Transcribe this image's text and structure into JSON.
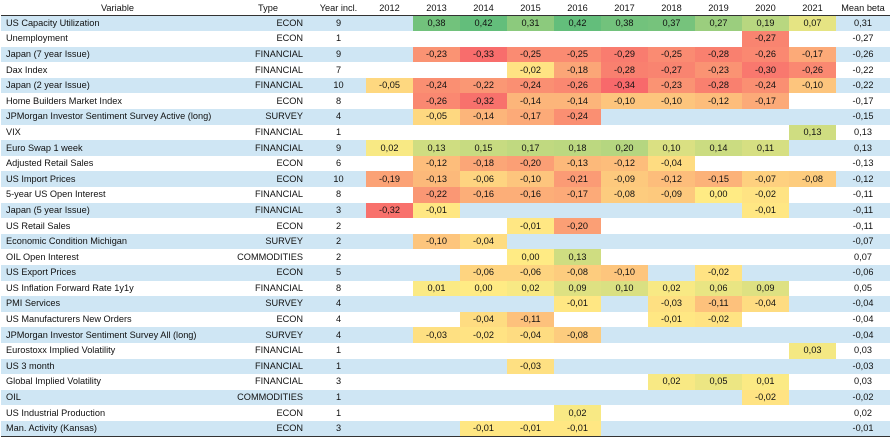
{
  "headers": {
    "variable": "Variable",
    "type": "Type",
    "year_incl": "Year incl.",
    "years": [
      "2012",
      "2013",
      "2014",
      "2015",
      "2016",
      "2017",
      "2018",
      "2019",
      "2020",
      "2021"
    ],
    "mean": "Mean beta"
  },
  "colors": {
    "positive": "#63be7b",
    "neutral": "#ffeb84",
    "negative": "#f8696b",
    "row_band": "#cfe6f4"
  },
  "rows": [
    {
      "variable": "US Capacity Utilization",
      "type": "ECON",
      "year_incl": "9",
      "values": [
        "",
        "0,38",
        "0,42",
        "0,31",
        "0,42",
        "0,38",
        "0,37",
        "0,27",
        "0,19",
        "0,07"
      ],
      "mean": "0,31"
    },
    {
      "variable": "Unemployment",
      "type": "ECON",
      "year_incl": "1",
      "values": [
        "",
        "",
        "",
        "",
        "",
        "",
        "",
        "",
        "-0,27",
        ""
      ],
      "mean": "-0,27"
    },
    {
      "variable": "Japan (7 year Issue)",
      "type": "FINANCIAL",
      "year_incl": "9",
      "values": [
        "",
        "-0,23",
        "-0,33",
        "-0,25",
        "-0,25",
        "-0,29",
        "-0,25",
        "-0,28",
        "-0,26",
        "-0,17"
      ],
      "mean": "-0,26"
    },
    {
      "variable": "Dax Index",
      "type": "FINANCIAL",
      "year_incl": "7",
      "values": [
        "",
        "",
        "",
        "-0,02",
        "-0,18",
        "-0,28",
        "-0,27",
        "-0,23",
        "-0,30",
        "-0,26"
      ],
      "mean": "-0,22"
    },
    {
      "variable": "Japan (2 year Issue)",
      "type": "FINANCIAL",
      "year_incl": "10",
      "values": [
        "-0,05",
        "-0,24",
        "-0,22",
        "-0,24",
        "-0,26",
        "-0,34",
        "-0,23",
        "-0,28",
        "-0,24",
        "-0,10"
      ],
      "mean": "-0,22"
    },
    {
      "variable": "Home Builders Market Index",
      "type": "ECON",
      "year_incl": "8",
      "values": [
        "",
        "-0,26",
        "-0,32",
        "-0,14",
        "-0,14",
        "-0,10",
        "-0,10",
        "-0,12",
        "-0,17",
        ""
      ],
      "mean": "-0,17"
    },
    {
      "variable": "JPMorgan Investor Sentiment Survey Active (long)",
      "type": "SURVEY",
      "year_incl": "4",
      "values": [
        "",
        "-0,05",
        "-0,14",
        "-0,17",
        "-0,24",
        "",
        "",
        "",
        "",
        ""
      ],
      "mean": "-0,15"
    },
    {
      "variable": "VIX",
      "type": "FINANCIAL",
      "year_incl": "1",
      "values": [
        "",
        "",
        "",
        "",
        "",
        "",
        "",
        "",
        "",
        "0,13"
      ],
      "mean": "0,13"
    },
    {
      "variable": "Euro Swap 1 week",
      "type": "FINANCIAL",
      "year_incl": "9",
      "values": [
        "0,02",
        "0,13",
        "0,15",
        "0,17",
        "0,18",
        "0,20",
        "0,10",
        "0,14",
        "0,11",
        ""
      ],
      "mean": "0,13"
    },
    {
      "variable": "Adjusted Retail Sales",
      "type": "ECON",
      "year_incl": "6",
      "values": [
        "",
        "-0,12",
        "-0,18",
        "-0,20",
        "-0,13",
        "-0,12",
        "-0,04",
        "",
        "",
        ""
      ],
      "mean": "-0,13"
    },
    {
      "variable": "US Import Prices",
      "type": "ECON",
      "year_incl": "10",
      "values": [
        "-0,19",
        "-0,13",
        "-0,06",
        "-0,10",
        "-0,21",
        "-0,09",
        "-0,12",
        "-0,15",
        "-0,07",
        "-0,08"
      ],
      "mean": "-0,12"
    },
    {
      "variable": "5-year US Open Interest",
      "type": "FINANCIAL",
      "year_incl": "8",
      "values": [
        "",
        "-0,22",
        "-0,16",
        "-0,16",
        "-0,17",
        "-0,08",
        "-0,09",
        "0,00",
        "-0,02",
        ""
      ],
      "mean": "-0,11"
    },
    {
      "variable": "Japan (5 year Issue)",
      "type": "FINANCIAL",
      "year_incl": "3",
      "values": [
        "-0,32",
        "-0,01",
        "",
        "",
        "",
        "",
        "",
        "",
        "-0,01",
        ""
      ],
      "mean": "-0,11"
    },
    {
      "variable": "US Retail Sales",
      "type": "ECON",
      "year_incl": "2",
      "values": [
        "",
        "",
        "",
        "-0,01",
        "-0,20",
        "",
        "",
        "",
        "",
        ""
      ],
      "mean": "-0,11"
    },
    {
      "variable": "Economic Condition Michigan",
      "type": "SURVEY",
      "year_incl": "2",
      "values": [
        "",
        "-0,10",
        "-0,04",
        "",
        "",
        "",
        "",
        "",
        "",
        ""
      ],
      "mean": "-0,07"
    },
    {
      "variable": "OIL Open Interest",
      "type": "COMMODITIES",
      "year_incl": "2",
      "values": [
        "",
        "",
        "",
        "0,00",
        "0,13",
        "",
        "",
        "",
        "",
        ""
      ],
      "mean": "0,07"
    },
    {
      "variable": "US Export Prices",
      "type": "ECON",
      "year_incl": "5",
      "values": [
        "",
        "",
        "-0,06",
        "-0,06",
        "-0,08",
        "-0,10",
        "",
        "-0,02",
        "",
        ""
      ],
      "mean": "-0,06"
    },
    {
      "variable": "US Inflation Forward Rate 1y1y",
      "type": "FINANCIAL",
      "year_incl": "8",
      "values": [
        "",
        "0,01",
        "0,00",
        "0,02",
        "0,09",
        "0,10",
        "0,02",
        "0,06",
        "0,09",
        ""
      ],
      "mean": "0,05"
    },
    {
      "variable": "PMI Services",
      "type": "SURVEY",
      "year_incl": "4",
      "values": [
        "",
        "",
        "",
        "",
        "-0,01",
        "",
        "-0,03",
        "-0,11",
        "-0,04",
        ""
      ],
      "mean": "-0,04"
    },
    {
      "variable": "US Manufacturers New Orders",
      "type": "ECON",
      "year_incl": "4",
      "values": [
        "",
        "",
        "-0,04",
        "-0,11",
        "",
        "",
        "-0,01",
        "-0,02",
        "",
        ""
      ],
      "mean": "-0,04"
    },
    {
      "variable": "JPMorgan Investor Sentiment Survey All (long)",
      "type": "SURVEY",
      "year_incl": "4",
      "values": [
        "",
        "-0,03",
        "-0,02",
        "-0,04",
        "-0,08",
        "",
        "",
        "",
        "",
        ""
      ],
      "mean": "-0,04"
    },
    {
      "variable": "Eurostoxx Implied Volatility",
      "type": "FINANCIAL",
      "year_incl": "1",
      "values": [
        "",
        "",
        "",
        "",
        "",
        "",
        "",
        "",
        "",
        "0,03"
      ],
      "mean": "0,03"
    },
    {
      "variable": "US 3 month",
      "type": "FINANCIAL",
      "year_incl": "1",
      "values": [
        "",
        "",
        "",
        "-0,03",
        "",
        "",
        "",
        "",
        "",
        ""
      ],
      "mean": "-0,03"
    },
    {
      "variable": "Global Implied Volatility",
      "type": "FINANCIAL",
      "year_incl": "3",
      "values": [
        "",
        "",
        "",
        "",
        "",
        "",
        "0,02",
        "0,05",
        "0,01",
        ""
      ],
      "mean": "0,03"
    },
    {
      "variable": "OIL",
      "type": "COMMODITIES",
      "year_incl": "1",
      "values": [
        "",
        "",
        "",
        "",
        "",
        "",
        "",
        "",
        "-0,02",
        ""
      ],
      "mean": "-0,02"
    },
    {
      "variable": "US Industrial Production",
      "type": "ECON",
      "year_incl": "1",
      "values": [
        "",
        "",
        "",
        "",
        "0,02",
        "",
        "",
        "",
        "",
        ""
      ],
      "mean": "0,02"
    },
    {
      "variable": "Man. Activity (Kansas)",
      "type": "ECON",
      "year_incl": "3",
      "values": [
        "",
        "",
        "-0,01",
        "-0,01",
        "-0,01",
        "",
        "",
        "",
        "",
        ""
      ],
      "mean": "-0,01"
    }
  ]
}
